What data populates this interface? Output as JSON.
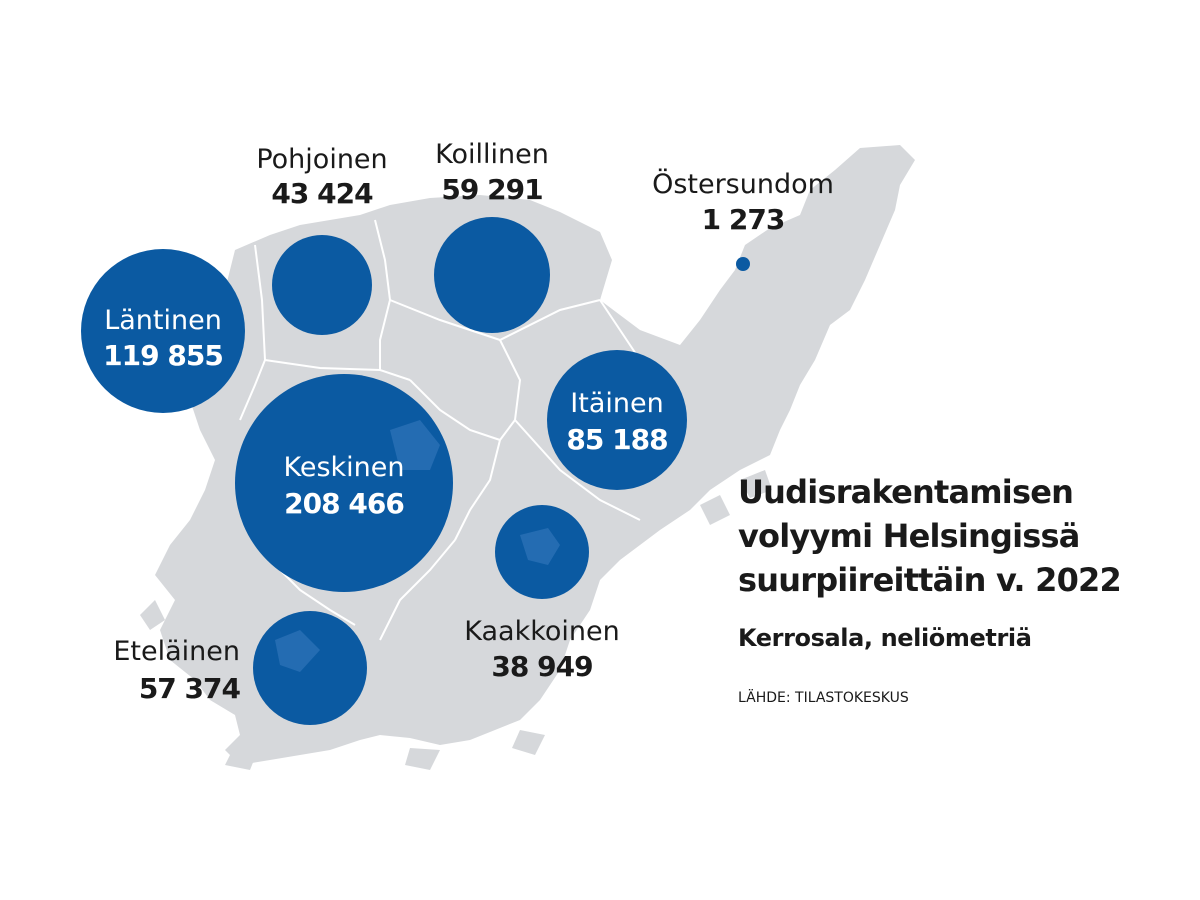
{
  "title_lines": [
    "Uudisrakentamisen",
    "volyymi Helsingissä",
    "suurpiireittäin v. 2022"
  ],
  "subtitle": "Kerrosala, neliömetriä",
  "source": "LÄHDE: TILASTOKESKUS",
  "colors": {
    "land": "#d6d8db",
    "bubble": "#0b5aa2",
    "border": "#ffffff",
    "text": "#1a1a1a"
  },
  "districts": [
    {
      "name": "Läntinen",
      "value": "119 855"
    },
    {
      "name": "Pohjoinen",
      "value": "43 424"
    },
    {
      "name": "Koillinen",
      "value": "59 291"
    },
    {
      "name": "Östersundom",
      "value": "1 273"
    },
    {
      "name": "Keskinen",
      "value": "208 466"
    },
    {
      "name": "Itäinen",
      "value": "85 188"
    },
    {
      "name": "Kaakkoinen",
      "value": "38 949"
    },
    {
      "name": "Eteläinen",
      "value": "57 374"
    }
  ]
}
